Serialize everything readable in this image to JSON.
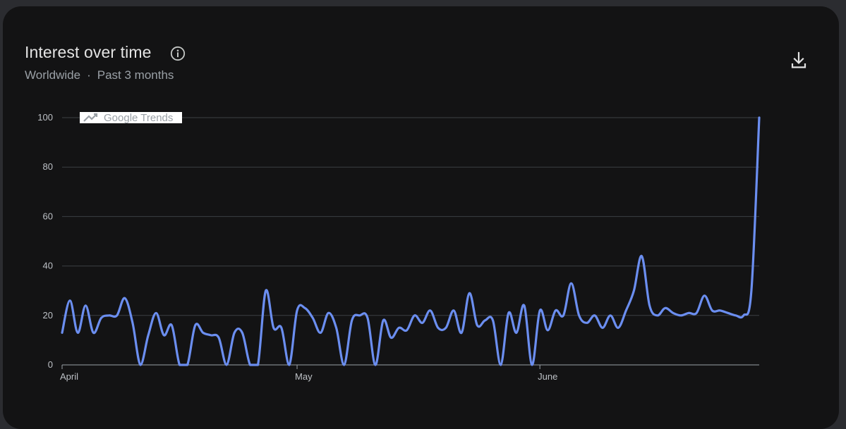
{
  "header": {
    "title": "Interest over time",
    "region": "Worldwide",
    "separator": "·",
    "period": "Past 3 months"
  },
  "icons": {
    "info": "info-icon",
    "download": "download-icon",
    "watermark": "trending-up-icon"
  },
  "watermark": "Google Trends",
  "colors": {
    "line": "#6b8ef0",
    "background": "#131314",
    "grid": "#3c4043",
    "text": "#e3e3e3",
    "muted": "#9aa0a6"
  },
  "chart_data": {
    "type": "line",
    "title": "Interest over time",
    "ylim": [
      0,
      100
    ],
    "yticks": [
      0,
      20,
      40,
      60,
      80,
      100
    ],
    "xticks": [
      {
        "label": "April",
        "index": 0
      },
      {
        "label": "May",
        "index": 30
      },
      {
        "label": "June",
        "index": 61
      }
    ],
    "grid": true,
    "series": [
      {
        "values": [
          13,
          26,
          13,
          24,
          13,
          19,
          20,
          20,
          27,
          17,
          0,
          12,
          21,
          12,
          16,
          0,
          0,
          16,
          13,
          12,
          11,
          0,
          13,
          13,
          0,
          0,
          30,
          15,
          15,
          0,
          22,
          23,
          19,
          13,
          21,
          15,
          0,
          18,
          20,
          19,
          0,
          18,
          11,
          15,
          14,
          20,
          17,
          22,
          15,
          15,
          22,
          13,
          29,
          16,
          18,
          18,
          0,
          21,
          13,
          24,
          0,
          22,
          14,
          22,
          20,
          33,
          20,
          17,
          20,
          15,
          20,
          15,
          22,
          30,
          44,
          24,
          20,
          23,
          21,
          20,
          21,
          21,
          28,
          22,
          22,
          21,
          20,
          20,
          30,
          100
        ]
      }
    ]
  }
}
